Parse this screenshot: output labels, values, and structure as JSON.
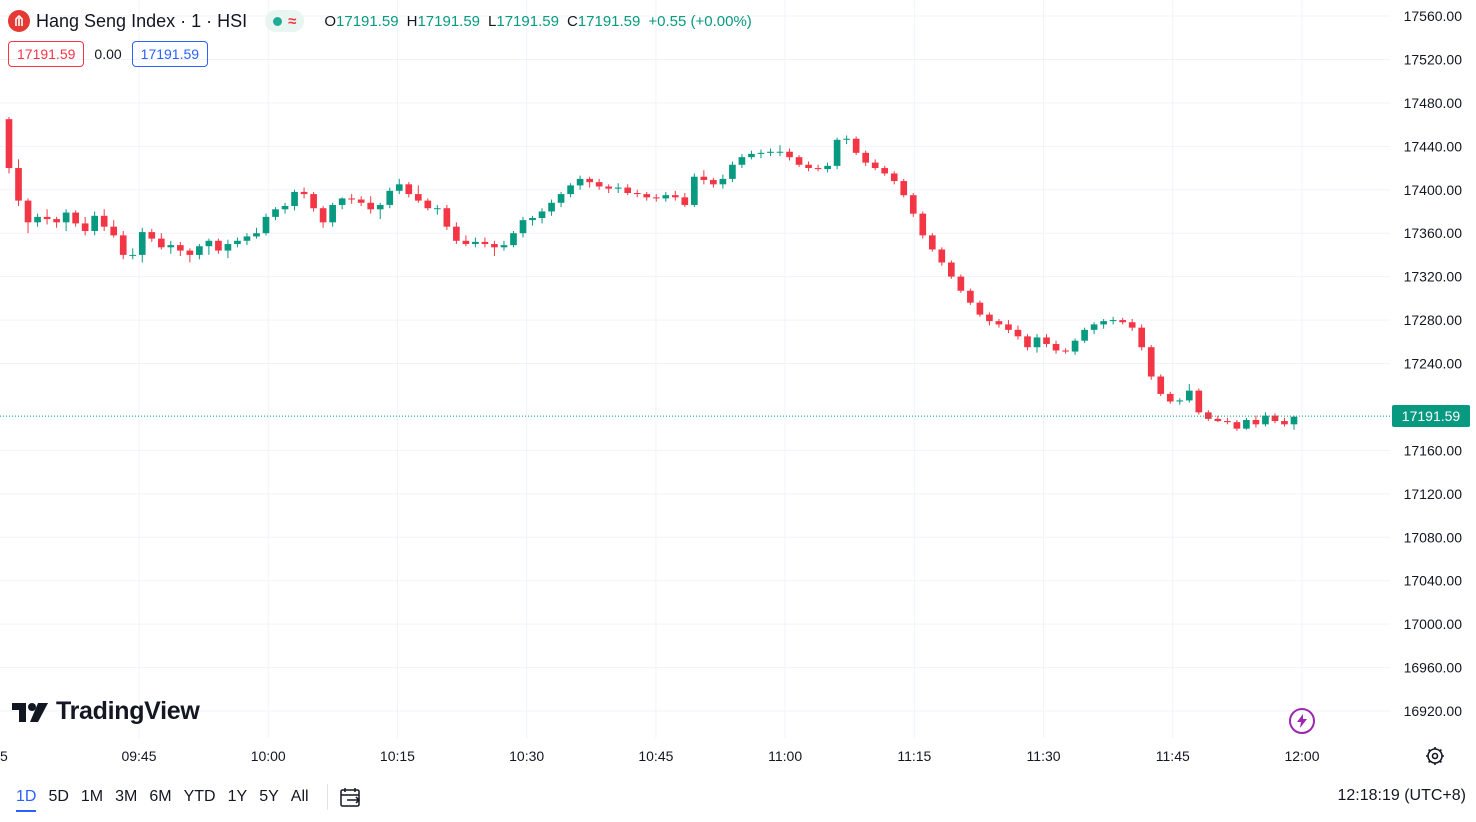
{
  "header": {
    "title": "Hang Seng Index · 1 · HSI",
    "ohlc": {
      "o_label": "O",
      "o_value": "17191.59",
      "h_label": "H",
      "h_value": "17191.59",
      "l_label": "L",
      "l_value": "17191.59",
      "c_label": "C",
      "c_value": "17191.59",
      "change": "+0.55 (+0.00%)"
    },
    "bid": "17191.59",
    "spread": "0.00",
    "ask": "17191.59"
  },
  "watermark": "TradingView",
  "last_price_label": "17191.59",
  "bottom_bar": {
    "ranges": [
      "1D",
      "5D",
      "1M",
      "3M",
      "6M",
      "YTD",
      "1Y",
      "5Y",
      "All"
    ],
    "active_range": "1D",
    "clock": "12:18:19 (UTC+8)"
  },
  "colors": {
    "up": "#089981",
    "down": "#f23645",
    "grid": "#f0f3fa",
    "brand_badge": "#e53935"
  },
  "icons": {
    "symbol": "hang-seng-logo-icon",
    "bolt": "lightning-bolt-icon",
    "settings": "gear-icon",
    "date_range": "calendar-range-icon"
  },
  "chart_data": {
    "type": "candlestick",
    "y_axis": {
      "ticks": [
        17560,
        17520,
        17480,
        17440,
        17400,
        17360,
        17320,
        17280,
        17240,
        17160,
        17120,
        17080,
        17040,
        17000,
        16960,
        16920
      ],
      "range": [
        16900,
        17570
      ]
    },
    "x_axis": {
      "ticks": [
        "09:45",
        "10:00",
        "10:15",
        "10:30",
        "10:45",
        "11:00",
        "11:15",
        "11:30",
        "11:45",
        "12:00"
      ],
      "edge_label": "5"
    },
    "last_price": 17191.59,
    "candles": [
      [
        17465,
        17467,
        17415,
        17420
      ],
      [
        17420,
        17428,
        17385,
        17390
      ],
      [
        17390,
        17392,
        17360,
        17370
      ],
      [
        17370,
        17378,
        17366,
        17375
      ],
      [
        17375,
        17382,
        17368,
        17373
      ],
      [
        17373,
        17375,
        17365,
        17370
      ],
      [
        17370,
        17382,
        17362,
        17379
      ],
      [
        17379,
        17381,
        17366,
        17369
      ],
      [
        17369,
        17375,
        17358,
        17362
      ],
      [
        17362,
        17380,
        17358,
        17376
      ],
      [
        17376,
        17382,
        17362,
        17366
      ],
      [
        17366,
        17372,
        17356,
        17358
      ],
      [
        17358,
        17362,
        17336,
        17340
      ],
      [
        17340,
        17346,
        17336,
        17340
      ],
      [
        17340,
        17365,
        17333,
        17361
      ],
      [
        17361,
        17364,
        17352,
        17355
      ],
      [
        17355,
        17360,
        17345,
        17347
      ],
      [
        17347,
        17353,
        17341,
        17349
      ],
      [
        17349,
        17352,
        17339,
        17344
      ],
      [
        17344,
        17346,
        17333,
        17340
      ],
      [
        17340,
        17350,
        17336,
        17348
      ],
      [
        17348,
        17355,
        17340,
        17353
      ],
      [
        17353,
        17355,
        17341,
        17344
      ],
      [
        17344,
        17354,
        17337,
        17350
      ],
      [
        17350,
        17356,
        17347,
        17353
      ],
      [
        17353,
        17360,
        17349,
        17357
      ],
      [
        17357,
        17365,
        17355,
        17360
      ],
      [
        17360,
        17378,
        17358,
        17375
      ],
      [
        17375,
        17384,
        17372,
        17382
      ],
      [
        17382,
        17388,
        17378,
        17385
      ],
      [
        17385,
        17400,
        17381,
        17398
      ],
      [
        17398,
        17402,
        17392,
        17396
      ],
      [
        17396,
        17398,
        17380,
        17383
      ],
      [
        17383,
        17385,
        17365,
        17370
      ],
      [
        17370,
        17388,
        17366,
        17386
      ],
      [
        17386,
        17393,
        17382,
        17392
      ],
      [
        17392,
        17396,
        17387,
        17391
      ],
      [
        17391,
        17394,
        17385,
        17388
      ],
      [
        17388,
        17394,
        17378,
        17382
      ],
      [
        17382,
        17388,
        17373,
        17386
      ],
      [
        17386,
        17402,
        17383,
        17399
      ],
      [
        17399,
        17410,
        17396,
        17405
      ],
      [
        17405,
        17407,
        17393,
        17396
      ],
      [
        17396,
        17404,
        17388,
        17390
      ],
      [
        17390,
        17392,
        17381,
        17383
      ],
      [
        17383,
        17386,
        17377,
        17383
      ],
      [
        17383,
        17386,
        17363,
        17366
      ],
      [
        17366,
        17370,
        17350,
        17353
      ],
      [
        17353,
        17358,
        17348,
        17350
      ],
      [
        17350,
        17356,
        17347,
        17352
      ],
      [
        17352,
        17356,
        17347,
        17350
      ],
      [
        17350,
        17353,
        17339,
        17347
      ],
      [
        17347,
        17353,
        17344,
        17349
      ],
      [
        17349,
        17362,
        17347,
        17360
      ],
      [
        17360,
        17375,
        17356,
        17372
      ],
      [
        17372,
        17376,
        17367,
        17374
      ],
      [
        17374,
        17383,
        17369,
        17380
      ],
      [
        17380,
        17391,
        17376,
        17388
      ],
      [
        17388,
        17398,
        17384,
        17396
      ],
      [
        17396,
        17406,
        17393,
        17404
      ],
      [
        17404,
        17413,
        17400,
        17410
      ],
      [
        17410,
        17412,
        17402,
        17407
      ],
      [
        17407,
        17410,
        17400,
        17403
      ],
      [
        17403,
        17405,
        17397,
        17401
      ],
      [
        17401,
        17406,
        17397,
        17402
      ],
      [
        17402,
        17405,
        17395,
        17397
      ],
      [
        17397,
        17400,
        17393,
        17396
      ],
      [
        17396,
        17398,
        17390,
        17393
      ],
      [
        17393,
        17396,
        17389,
        17392
      ],
      [
        17392,
        17398,
        17389,
        17395
      ],
      [
        17395,
        17399,
        17390,
        17393
      ],
      [
        17393,
        17397,
        17384,
        17386
      ],
      [
        17386,
        17415,
        17384,
        17412
      ],
      [
        17412,
        17418,
        17405,
        17409
      ],
      [
        17409,
        17411,
        17402,
        17405
      ],
      [
        17405,
        17414,
        17401,
        17410
      ],
      [
        17410,
        17426,
        17407,
        17423
      ],
      [
        17423,
        17433,
        17420,
        17430
      ],
      [
        17430,
        17436,
        17428,
        17433
      ],
      [
        17433,
        17437,
        17429,
        17434
      ],
      [
        17434,
        17438,
        17431,
        17435
      ],
      [
        17435,
        17441,
        17431,
        17435
      ],
      [
        17435,
        17438,
        17427,
        17430
      ],
      [
        17430,
        17432,
        17421,
        17423
      ],
      [
        17423,
        17426,
        17417,
        17420
      ],
      [
        17420,
        17423,
        17417,
        17419
      ],
      [
        17419,
        17425,
        17416,
        17422
      ],
      [
        17422,
        17448,
        17419,
        17446
      ],
      [
        17446,
        17450,
        17442,
        17447
      ],
      [
        17447,
        17449,
        17432,
        17434
      ],
      [
        17434,
        17436,
        17422,
        17425
      ],
      [
        17425,
        17428,
        17418,
        17420
      ],
      [
        17420,
        17422,
        17413,
        17415
      ],
      [
        17415,
        17417,
        17405,
        17408
      ],
      [
        17408,
        17410,
        17393,
        17395
      ],
      [
        17395,
        17397,
        17375,
        17378
      ],
      [
        17378,
        17380,
        17355,
        17358
      ],
      [
        17358,
        17360,
        17343,
        17345
      ],
      [
        17345,
        17347,
        17330,
        17333
      ],
      [
        17333,
        17335,
        17318,
        17320
      ],
      [
        17320,
        17322,
        17305,
        17307
      ],
      [
        17307,
        17309,
        17294,
        17296
      ],
      [
        17296,
        17298,
        17283,
        17285
      ],
      [
        17285,
        17287,
        17275,
        17279
      ],
      [
        17279,
        17281,
        17273,
        17276
      ],
      [
        17276,
        17280,
        17268,
        17271
      ],
      [
        17271,
        17275,
        17262,
        17265
      ],
      [
        17265,
        17267,
        17252,
        17255
      ],
      [
        17255,
        17267,
        17250,
        17264
      ],
      [
        17264,
        17267,
        17255,
        17258
      ],
      [
        17258,
        17261,
        17249,
        17252
      ],
      [
        17252,
        17254,
        17249,
        17251
      ],
      [
        17251,
        17263,
        17248,
        17261
      ],
      [
        17261,
        17273,
        17259,
        17271
      ],
      [
        17271,
        17278,
        17267,
        17276
      ],
      [
        17276,
        17281,
        17272,
        17279
      ],
      [
        17279,
        17283,
        17276,
        17280
      ],
      [
        17280,
        17282,
        17276,
        17278
      ],
      [
        17278,
        17281,
        17270,
        17273
      ],
      [
        17273,
        17276,
        17252,
        17255
      ],
      [
        17255,
        17257,
        17225,
        17228
      ],
      [
        17228,
        17230,
        17210,
        17212
      ],
      [
        17212,
        17214,
        17203,
        17205
      ],
      [
        17205,
        17208,
        17202,
        17206
      ],
      [
        17206,
        17221,
        17204,
        17215
      ],
      [
        17215,
        17217,
        17193,
        17195
      ],
      [
        17195,
        17197,
        17187,
        17189
      ],
      [
        17189,
        17192,
        17186,
        17187
      ],
      [
        17187,
        17190,
        17184,
        17186
      ],
      [
        17186,
        17188,
        17178,
        17180
      ],
      [
        17180,
        17190,
        17179,
        17188
      ],
      [
        17188,
        17192,
        17181,
        17184
      ],
      [
        17184,
        17195,
        17182,
        17192
      ],
      [
        17192,
        17194,
        17185,
        17187
      ],
      [
        17187,
        17190,
        17182,
        17184
      ],
      [
        17184,
        17192,
        17179,
        17191
      ]
    ]
  }
}
